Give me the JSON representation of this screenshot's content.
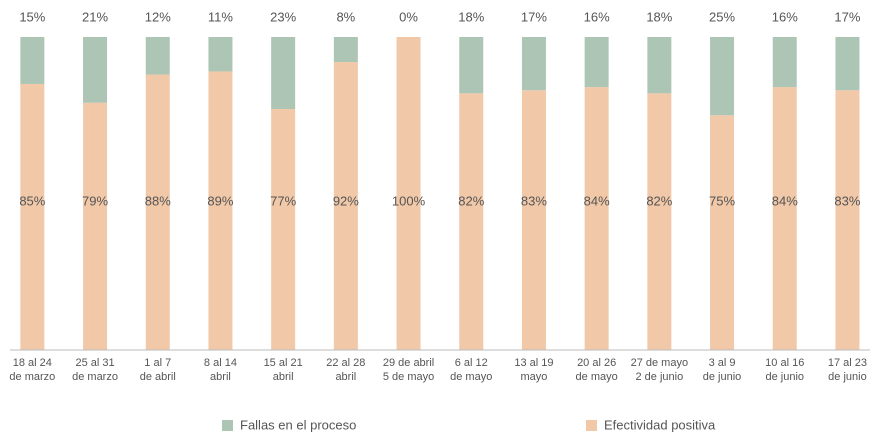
{
  "chart_data": {
    "type": "stacked_bar_100",
    "categories": [
      [
        "18 al 24",
        "de marzo"
      ],
      [
        "25 al 31",
        "de marzo"
      ],
      [
        "1 al 7",
        "de abril"
      ],
      [
        "8 al 14",
        "abril"
      ],
      [
        "15 al 21",
        "abril"
      ],
      [
        "22 al 28",
        "abril"
      ],
      [
        "29 de abril",
        "5 de mayo"
      ],
      [
        "6 al 12",
        "de mayo"
      ],
      [
        "13 al 19",
        "mayo"
      ],
      [
        "20 al 26",
        "de mayo"
      ],
      [
        "27 de mayo",
        "2 de junio"
      ],
      [
        "3 al 9",
        "de junio"
      ],
      [
        "10 al 16",
        "de junio"
      ],
      [
        "17 al 23",
        "de junio"
      ]
    ],
    "series": [
      {
        "name": "Fallas en el proceso",
        "color": "#adc5b5",
        "values": [
          15,
          21,
          12,
          11,
          23,
          8,
          0,
          18,
          17,
          16,
          18,
          25,
          16,
          17
        ],
        "value_labels": [
          "15%",
          "21%",
          "12%",
          "11%",
          "23%",
          "8%",
          "0%",
          "18%",
          "17%",
          "16%",
          "18%",
          "25%",
          "16%",
          "17%"
        ]
      },
      {
        "name": "Efectividad positiva",
        "color": "#f1c8a8",
        "values": [
          85,
          79,
          88,
          89,
          77,
          92,
          100,
          82,
          83,
          84,
          82,
          75,
          84,
          83
        ],
        "value_labels": [
          "85%",
          "79%",
          "88%",
          "89%",
          "77%",
          "92%",
          "100%",
          "82%",
          "83%",
          "84%",
          "82%",
          "75%",
          "84%",
          "83%"
        ]
      }
    ],
    "ylim": [
      0,
      100
    ]
  }
}
